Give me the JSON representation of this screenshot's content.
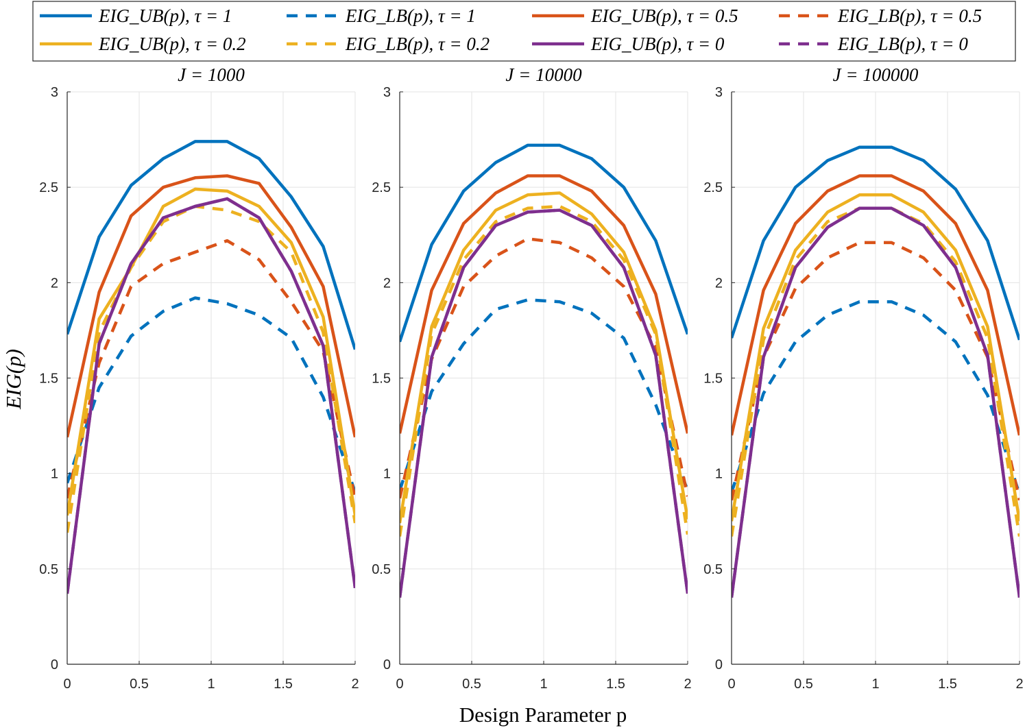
{
  "chart_data": {
    "type": "line",
    "xlabel": "Design Parameter p",
    "ylabel": "EIG(p)",
    "xlim": [
      0,
      2
    ],
    "ylim": [
      0,
      3
    ],
    "x_ticks": [
      "0",
      "0.5",
      "1",
      "1.5",
      "2"
    ],
    "y_ticks": [
      "0",
      "0.5",
      "1",
      "1.5",
      "2",
      "2.5",
      "3"
    ],
    "grid": true,
    "legend_position": "top",
    "legend": [
      {
        "label": "EIG_UB(p), τ = 1",
        "color": "#0072BD",
        "style": "solid"
      },
      {
        "label": "EIG_LB(p), τ = 1",
        "color": "#0072BD",
        "style": "dashed"
      },
      {
        "label": "EIG_UB(p), τ = 0.5",
        "color": "#D95319",
        "style": "solid"
      },
      {
        "label": "EIG_LB(p), τ = 0.5",
        "color": "#D95319",
        "style": "dashed"
      },
      {
        "label": "EIG_UB(p), τ = 0.2",
        "color": "#EDB120",
        "style": "solid"
      },
      {
        "label": "EIG_LB(p), τ = 0.2",
        "color": "#EDB120",
        "style": "dashed"
      },
      {
        "label": "EIG_UB(p), τ = 0",
        "color": "#7E2F8E",
        "style": "solid"
      },
      {
        "label": "EIG_LB(p), τ = 0",
        "color": "#7E2F8E",
        "style": "dashed"
      }
    ],
    "x": [
      0,
      0.222,
      0.444,
      0.667,
      0.889,
      1.111,
      1.333,
      1.556,
      1.778,
      2
    ],
    "panels": [
      {
        "title": "J = 1000",
        "series": [
          {
            "name": "EIG_UB(p), τ = 1",
            "values": [
              1.73,
              2.24,
              2.51,
              2.65,
              2.74,
              2.74,
              2.65,
              2.45,
              2.19,
              1.65
            ]
          },
          {
            "name": "EIG_LB(p), τ = 1",
            "values": [
              0.95,
              1.45,
              1.72,
              1.85,
              1.92,
              1.89,
              1.83,
              1.71,
              1.4,
              0.9
            ]
          },
          {
            "name": "EIG_UB(p), τ = 0.5",
            "values": [
              1.19,
              1.95,
              2.35,
              2.5,
              2.55,
              2.56,
              2.52,
              2.29,
              1.98,
              1.19
            ]
          },
          {
            "name": "EIG_LB(p), τ = 0.5",
            "values": [
              0.87,
              1.58,
              1.98,
              2.1,
              2.16,
              2.22,
              2.12,
              1.9,
              1.64,
              0.87
            ]
          },
          {
            "name": "EIG_UB(p), τ = 0.2",
            "values": [
              0.78,
              1.81,
              2.08,
              2.4,
              2.49,
              2.48,
              2.4,
              2.21,
              1.82,
              0.78
            ]
          },
          {
            "name": "EIG_LB(p), τ = 0.2",
            "values": [
              0.69,
              1.74,
              2.08,
              2.32,
              2.4,
              2.38,
              2.32,
              2.16,
              1.74,
              0.74
            ]
          },
          {
            "name": "EIG_UB(p), τ = 0",
            "values": [
              0.37,
              1.68,
              2.1,
              2.34,
              2.4,
              2.44,
              2.34,
              2.06,
              1.67,
              0.4
            ]
          },
          {
            "name": "EIG_LB(p), τ = 0",
            "values": [
              0.37,
              1.68,
              2.1,
              2.34,
              2.4,
              2.44,
              2.34,
              2.06,
              1.67,
              0.4
            ]
          }
        ]
      },
      {
        "title": "J = 10000",
        "series": [
          {
            "name": "EIG_UB(p), τ = 1",
            "values": [
              1.69,
              2.2,
              2.48,
              2.63,
              2.72,
              2.72,
              2.65,
              2.5,
              2.22,
              1.73
            ]
          },
          {
            "name": "EIG_LB(p), τ = 1",
            "values": [
              0.91,
              1.43,
              1.68,
              1.86,
              1.91,
              1.9,
              1.84,
              1.71,
              1.36,
              0.91
            ]
          },
          {
            "name": "EIG_UB(p), τ = 0.5",
            "values": [
              1.21,
              1.96,
              2.31,
              2.47,
              2.56,
              2.56,
              2.48,
              2.3,
              1.94,
              1.21
            ]
          },
          {
            "name": "EIG_LB(p), τ = 0.5",
            "values": [
              0.87,
              1.6,
              1.98,
              2.14,
              2.23,
              2.21,
              2.13,
              1.98,
              1.66,
              0.88
            ]
          },
          {
            "name": "EIG_UB(p), τ = 0.2",
            "values": [
              0.74,
              1.77,
              2.17,
              2.38,
              2.46,
              2.47,
              2.36,
              2.16,
              1.75,
              0.76
            ]
          },
          {
            "name": "EIG_LB(p), τ = 0.2",
            "values": [
              0.67,
              1.73,
              2.12,
              2.32,
              2.39,
              2.4,
              2.32,
              2.12,
              1.73,
              0.68
            ]
          },
          {
            "name": "EIG_UB(p), τ = 0",
            "values": [
              0.35,
              1.61,
              2.08,
              2.3,
              2.37,
              2.38,
              2.3,
              2.08,
              1.62,
              0.37
            ]
          },
          {
            "name": "EIG_LB(p), τ = 0",
            "values": [
              0.35,
              1.61,
              2.08,
              2.3,
              2.37,
              2.38,
              2.3,
              2.08,
              1.62,
              0.37
            ]
          }
        ]
      },
      {
        "title": "J = 100000",
        "series": [
          {
            "name": "EIG_UB(p), τ = 1",
            "values": [
              1.71,
              2.22,
              2.5,
              2.64,
              2.71,
              2.71,
              2.64,
              2.49,
              2.22,
              1.7
            ]
          },
          {
            "name": "EIG_LB(p), τ = 1",
            "values": [
              0.9,
              1.42,
              1.69,
              1.83,
              1.9,
              1.9,
              1.83,
              1.69,
              1.41,
              0.89
            ]
          },
          {
            "name": "EIG_UB(p), τ = 0.5",
            "values": [
              1.2,
              1.96,
              2.31,
              2.48,
              2.56,
              2.56,
              2.48,
              2.31,
              1.96,
              1.2
            ]
          },
          {
            "name": "EIG_LB(p), τ = 0.5",
            "values": [
              0.86,
              1.61,
              1.97,
              2.13,
              2.21,
              2.21,
              2.13,
              1.96,
              1.61,
              0.86
            ]
          },
          {
            "name": "EIG_UB(p), τ = 0.2",
            "values": [
              0.75,
              1.76,
              2.17,
              2.37,
              2.46,
              2.46,
              2.37,
              2.17,
              1.77,
              0.75
            ]
          },
          {
            "name": "EIG_LB(p), τ = 0.2",
            "values": [
              0.67,
              1.7,
              2.12,
              2.32,
              2.39,
              2.39,
              2.31,
              2.11,
              1.71,
              0.67
            ]
          },
          {
            "name": "EIG_UB(p), τ = 0",
            "values": [
              0.35,
              1.61,
              2.08,
              2.29,
              2.39,
              2.39,
              2.3,
              2.08,
              1.62,
              0.35
            ]
          },
          {
            "name": "EIG_LB(p), τ = 0",
            "values": [
              0.35,
              1.61,
              2.08,
              2.29,
              2.39,
              2.39,
              2.3,
              2.08,
              1.62,
              0.35
            ]
          }
        ]
      }
    ]
  }
}
